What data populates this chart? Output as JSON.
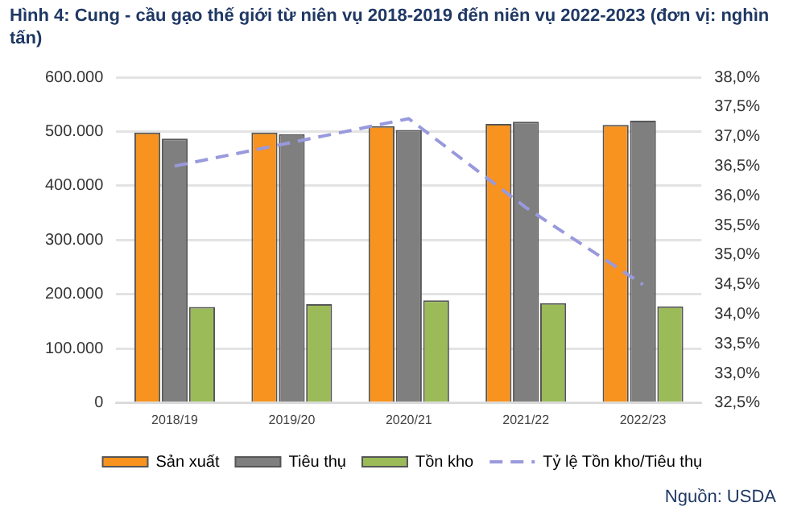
{
  "chart_data": {
    "type": "bar",
    "title": "Hình 4: Cung - cầu gạo thế giới từ niên vụ 2018-2019 đến niên vụ 2022-2023 (đơn vị: nghìn tấn)",
    "categories": [
      "2018/19",
      "2019/20",
      "2020/21",
      "2021/22",
      "2022/23"
    ],
    "series": [
      {
        "name": "Sản xuất",
        "color": "#f7931e",
        "values": [
          498000,
          498000,
          510000,
          514000,
          512000
        ]
      },
      {
        "name": "Tiêu thụ",
        "color": "#7f7f7f",
        "values": [
          487000,
          495000,
          503000,
          518000,
          520000
        ]
      },
      {
        "name": "Tồn kho",
        "color": "#9bbb59",
        "values": [
          177000,
          182000,
          189000,
          184000,
          178000
        ]
      },
      {
        "name": "Tỷ lệ Tồn kho/Tiêu thụ",
        "type": "line",
        "axis": "y2",
        "color": "#9999dd",
        "line_style": "dashed",
        "marker": "none",
        "values": [
          36.5,
          36.9,
          37.3,
          35.8,
          34.5
        ]
      }
    ],
    "ylim": [
      0,
      600000
    ],
    "yticks": [
      0,
      {
        "value": 100000,
        "label": "100.000"
      },
      {
        "value": 200000,
        "label": "200.000"
      },
      {
        "value": 300000,
        "label": "300.000"
      },
      {
        "value": 400000,
        "label": "400.000"
      },
      {
        "value": 500000,
        "label": "500.000"
      },
      {
        "value": 600000,
        "label": "600.000"
      }
    ],
    "y2lim": [
      32.5,
      38
    ],
    "y2ticks": [
      {
        "value": 32.5,
        "label": "32,5%"
      },
      {
        "value": 33,
        "label": "33,0%"
      },
      {
        "value": 33.5,
        "label": "33,5%"
      },
      {
        "value": 34,
        "label": "34,0%"
      },
      {
        "value": 34.5,
        "label": "34,5%"
      },
      {
        "value": 35,
        "label": "35,0%"
      },
      {
        "value": 35.5,
        "label": "35,5%"
      },
      {
        "value": 36,
        "label": "36,0%"
      },
      {
        "value": 36.5,
        "label": "36,5%"
      },
      {
        "value": 37,
        "label": "37,0%"
      },
      {
        "value": 37.5,
        "label": "37,5%"
      },
      {
        "value": 38,
        "label": "38,0%"
      }
    ],
    "grid": "y",
    "legend": "bottom",
    "annotations": [
      "Nguồn: USDA"
    ]
  }
}
